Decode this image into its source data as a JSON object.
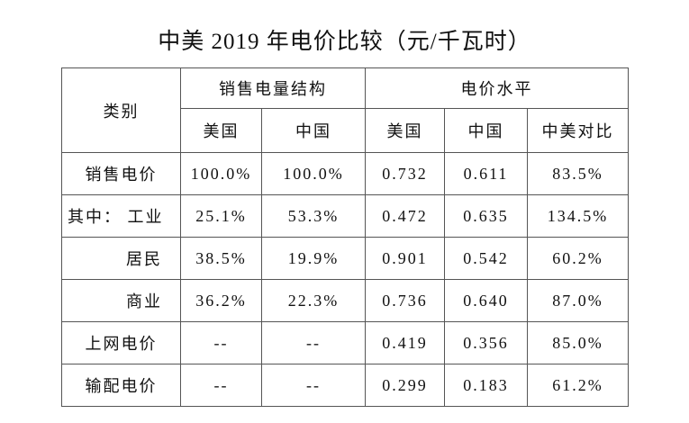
{
  "title": "中美 2019 年电价比较（元/千瓦时）",
  "table": {
    "header": {
      "category": "类别",
      "groups": [
        "销售电量结构",
        "电价水平"
      ],
      "columns": [
        "美国",
        "中国",
        "美国",
        "中国",
        "中美对比"
      ]
    },
    "rows": [
      [
        "销售电价",
        "100.0%",
        "100.0%",
        "0.732",
        "0.611",
        "83.5%"
      ],
      [
        "其中： 工业",
        "25.1%",
        "53.3%",
        "0.472",
        "0.635",
        "134.5%"
      ],
      [
        "居民",
        "38.5%",
        "19.9%",
        "0.901",
        "0.542",
        "60.2%"
      ],
      [
        "商业",
        "36.2%",
        "22.3%",
        "0.736",
        "0.640",
        "87.0%"
      ],
      [
        "上网电价",
        "--",
        "--",
        "0.419",
        "0.356",
        "85.0%"
      ],
      [
        "输配电价",
        "--",
        "--",
        "0.299",
        "0.183",
        "61.2%"
      ]
    ]
  }
}
